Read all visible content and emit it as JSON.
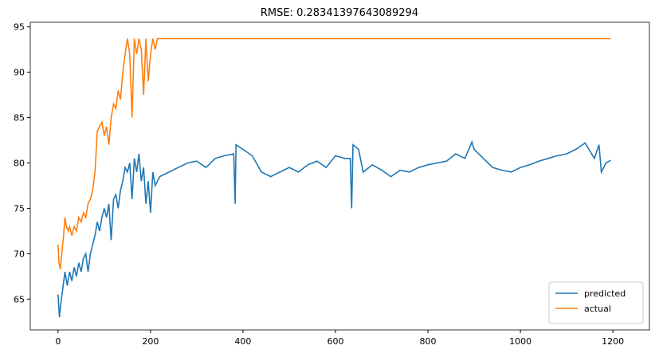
{
  "chart_data": {
    "type": "line",
    "title": "RMSE: 0.28341397643089294",
    "xlim": [
      -60,
      1279
    ],
    "ylim": [
      61.6,
      95.5
    ],
    "xticks": [
      0,
      200,
      400,
      600,
      800,
      1000,
      1200
    ],
    "yticks": [
      65,
      70,
      75,
      80,
      85,
      90,
      95
    ],
    "legend": "lower right",
    "series": [
      {
        "name": "predicted",
        "color": "#1f77b4",
        "x": [
          0,
          3,
          6,
          10,
          15,
          20,
          25,
          30,
          35,
          40,
          45,
          50,
          55,
          60,
          65,
          70,
          75,
          80,
          85,
          90,
          95,
          100,
          105,
          110,
          115,
          120,
          125,
          130,
          135,
          140,
          145,
          150,
          155,
          160,
          165,
          170,
          175,
          180,
          185,
          190,
          195,
          200,
          205,
          210,
          220,
          240,
          260,
          280,
          300,
          320,
          340,
          360,
          380,
          383,
          385,
          400,
          420,
          440,
          460,
          480,
          500,
          520,
          540,
          560,
          580,
          600,
          620,
          632,
          635,
          638,
          650,
          660,
          680,
          700,
          720,
          740,
          760,
          780,
          800,
          820,
          840,
          860,
          880,
          895,
          900,
          920,
          940,
          960,
          980,
          1000,
          1020,
          1040,
          1060,
          1080,
          1100,
          1120,
          1140,
          1160,
          1170,
          1175,
          1185,
          1195
        ],
        "values": [
          65.5,
          63,
          64.5,
          66,
          68,
          66.5,
          68,
          67,
          68.5,
          67.5,
          69,
          68,
          69.5,
          70,
          68,
          70,
          71,
          72,
          73.5,
          72.5,
          74,
          75,
          74,
          75.5,
          71.5,
          76,
          76.5,
          75,
          77,
          78,
          79.5,
          79,
          80,
          76,
          80.5,
          79,
          81,
          78,
          79.5,
          75.5,
          78,
          74.5,
          79,
          77.5,
          78.5,
          79,
          79.5,
          80,
          80.2,
          79.5,
          80.5,
          80.8,
          81,
          75.5,
          82,
          81.5,
          80.8,
          79,
          78.5,
          79,
          79.5,
          79,
          79.8,
          80.2,
          79.5,
          80.8,
          80.5,
          80.5,
          75,
          82,
          81.5,
          79,
          79.8,
          79.2,
          78.5,
          79.2,
          79,
          79.5,
          79.8,
          80,
          80.2,
          81,
          80.5,
          82.3,
          81.5,
          80.5,
          79.5,
          79.2,
          79,
          79.5,
          79.8,
          80.2,
          80.5,
          80.8,
          81,
          81.5,
          82.2,
          80.5,
          82,
          79,
          80,
          80.3
        ]
      },
      {
        "name": "actual",
        "color": "#ff7f0e",
        "x": [
          0,
          2,
          5,
          8,
          12,
          15,
          18,
          22,
          25,
          30,
          35,
          40,
          45,
          50,
          55,
          60,
          65,
          70,
          75,
          80,
          85,
          90,
          95,
          100,
          105,
          110,
          115,
          120,
          125,
          130,
          135,
          140,
          145,
          150,
          155,
          160,
          165,
          170,
          175,
          180,
          185,
          190,
          195,
          200,
          205,
          210,
          215,
          220,
          1195
        ],
        "values": [
          71,
          69,
          68.3,
          70,
          72,
          74,
          73,
          72.5,
          73,
          72,
          73,
          72.5,
          74,
          73.5,
          74.5,
          74,
          75.5,
          76,
          77,
          79,
          83.5,
          84,
          84.5,
          83,
          84,
          82,
          85,
          86.5,
          86,
          88,
          87,
          90,
          92,
          93.7,
          92,
          85,
          93.7,
          92,
          93.7,
          92.5,
          87.5,
          93.7,
          89,
          92,
          93.7,
          92.5,
          93.7,
          93.7,
          93.7
        ]
      }
    ]
  }
}
